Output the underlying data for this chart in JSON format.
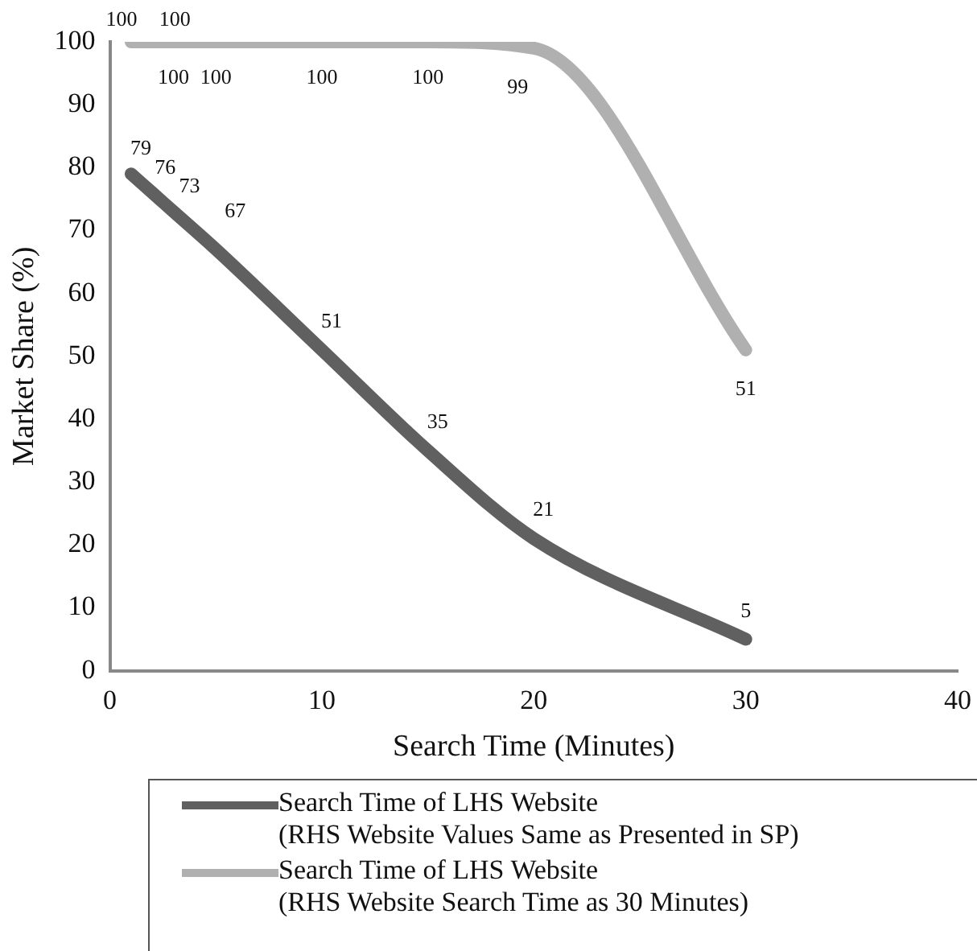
{
  "chart_data": {
    "type": "line",
    "xlabel": "Search Time (Minutes)",
    "ylabel": "Market Share (%)",
    "xlim": [
      0,
      40
    ],
    "xticks": [
      0,
      10,
      20,
      30,
      40
    ],
    "ylim": [
      0,
      100
    ],
    "yticks": [
      0,
      10,
      20,
      30,
      40,
      50,
      60,
      70,
      80,
      90,
      100
    ],
    "grid": false,
    "legend": "bottom",
    "marker": "none",
    "line_style": "solid",
    "data_labels": true,
    "series": [
      {
        "name": "Search Time of LHS Website (RHS Website Values Same as Presented in SP)",
        "color": "#606060",
        "x": [
          1,
          2,
          3,
          5,
          10,
          15,
          20,
          30
        ],
        "values": [
          79,
          76,
          73,
          67,
          51,
          35,
          21,
          5
        ]
      },
      {
        "name": "Search Time of LHS Website (RHS Website Search Time as 30 Minutes)",
        "color": "#b0b0b0",
        "x": [
          1,
          2,
          3,
          5,
          10,
          15,
          20,
          30
        ],
        "values": [
          100,
          100,
          100,
          100,
          100,
          100,
          99,
          51
        ]
      }
    ]
  }
}
